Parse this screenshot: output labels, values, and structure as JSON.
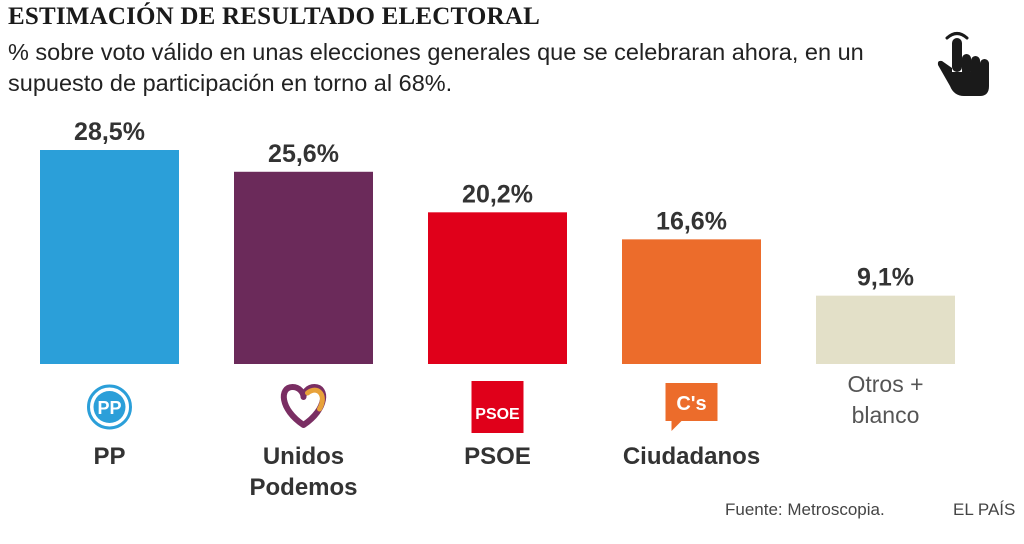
{
  "header": {
    "title": "ESTIMACIÓN DE RESULTADO ELECTORAL",
    "subtitle": "% sobre voto válido en unas elecciones generales que se celebraran ahora, en un supuesto de participación en torno al 68%."
  },
  "icons": {
    "interactive": "hand-pointer-icon"
  },
  "chart_data": {
    "type": "bar",
    "title": "ESTIMACIÓN DE RESULTADO ELECTORAL",
    "subtitle": "% sobre voto válido en unas elecciones generales que se celebraran ahora, en un supuesto de participación en torno al 68%.",
    "categories": [
      "PP",
      "Unidos Podemos",
      "PSOE",
      "Ciudadanos",
      "Otros + blanco"
    ],
    "category_lines": [
      [
        "PP"
      ],
      [
        "Unidos",
        "Podemos"
      ],
      [
        "PSOE"
      ],
      [
        "Ciudadanos"
      ],
      [
        "Otros +",
        "blanco"
      ]
    ],
    "values": [
      28.5,
      25.6,
      20.2,
      16.6,
      9.1
    ],
    "value_labels": [
      "28,5%",
      "25,6%",
      "20,2%",
      "16,6%",
      "9,1%"
    ],
    "colors": [
      "#2b9fd9",
      "#6b2a5a",
      "#e0001a",
      "#ec6c2b",
      "#e3e0c8"
    ],
    "logos": [
      "pp-logo-icon",
      "podemos-heart-icon",
      "psoe-logo-icon",
      "ciudadanos-logo-icon",
      ""
    ],
    "logo_texts": [
      "PP",
      "",
      "PSOE",
      "C's",
      ""
    ],
    "ylim": [
      0,
      28.5
    ],
    "xlabel": "",
    "ylabel": ""
  },
  "footer": {
    "source": "Fuente: Metroscopia.",
    "brand": "EL PAÍS"
  }
}
